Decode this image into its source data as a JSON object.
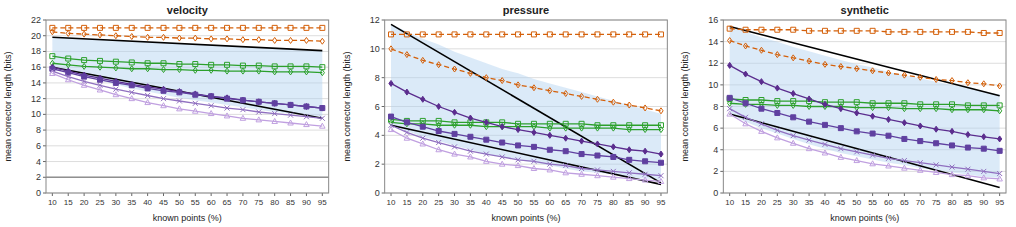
{
  "chart_data": [
    {
      "type": "line",
      "title": "velocity",
      "xlabel": "known points (%)",
      "ylabel": "mean corrector length (bits)",
      "x": [
        10,
        15,
        20,
        25,
        30,
        35,
        40,
        45,
        50,
        55,
        60,
        65,
        70,
        75,
        80,
        85,
        90,
        95
      ],
      "xlim": [
        8,
        97
      ],
      "xticks": [
        10,
        15,
        20,
        25,
        30,
        35,
        40,
        45,
        50,
        55,
        60,
        65,
        70,
        75,
        80,
        85,
        90,
        95
      ],
      "ylim": [
        0,
        22
      ],
      "yticks": [
        0,
        2,
        4,
        6,
        8,
        10,
        12,
        14,
        16,
        18,
        20,
        22
      ],
      "grid": "y",
      "hline": {
        "value": 2.0,
        "color": "#909090"
      },
      "band": {
        "upper": [
          19.8,
          19.7,
          19.6,
          19.5,
          19.4,
          19.3,
          19.2,
          19.1,
          19.0,
          18.9,
          18.8,
          18.7,
          18.6,
          18.5,
          18.4,
          18.3,
          18.2,
          18.1
        ],
        "lower": [
          16.0,
          15.4,
          14.8,
          14.3,
          13.8,
          13.3,
          12.9,
          12.5,
          12.1,
          11.8,
          11.5,
          11.2,
          10.9,
          10.6,
          10.3,
          10.1,
          9.9,
          9.7
        ],
        "color": "#b0d0f0"
      },
      "reference_lines": [
        {
          "start": [
            10,
            19.8
          ],
          "end": [
            95,
            18.1
          ],
          "color": "#000000"
        },
        {
          "start": [
            10,
            16.0
          ],
          "end": [
            95,
            9.5
          ],
          "color": "#000000"
        }
      ],
      "series": [
        {
          "values": [
            21.0,
            21.0,
            21.0,
            21.0,
            21.0,
            21.0,
            21.0,
            21.0,
            21.0,
            21.0,
            21.0,
            21.0,
            21.0,
            21.0,
            21.0,
            21.0,
            21.0,
            21.0
          ],
          "color": "#d4600a",
          "line_style": "dashed",
          "marker": "square-open"
        },
        {
          "values": [
            20.5,
            20.3,
            20.2,
            20.1,
            20.0,
            19.9,
            19.8,
            19.8,
            19.7,
            19.7,
            19.6,
            19.6,
            19.5,
            19.5,
            19.4,
            19.4,
            19.4,
            19.3
          ],
          "color": "#d4600a",
          "line_style": "dashed",
          "marker": "diamond-open"
        },
        {
          "values": [
            17.4,
            17.1,
            16.9,
            16.8,
            16.7,
            16.6,
            16.5,
            16.5,
            16.4,
            16.4,
            16.3,
            16.3,
            16.2,
            16.2,
            16.1,
            16.1,
            16.1,
            16.0
          ],
          "color": "#2ca02c",
          "line_style": "solid",
          "marker": "square-open"
        },
        {
          "values": [
            16.5,
            16.3,
            16.1,
            16.0,
            15.9,
            15.8,
            15.8,
            15.7,
            15.7,
            15.6,
            15.6,
            15.5,
            15.5,
            15.5,
            15.4,
            15.4,
            15.4,
            15.3
          ],
          "color": "#2ca02c",
          "line_style": "solid",
          "marker": "diamond-open"
        },
        {
          "values": [
            16.0,
            15.5,
            15.0,
            14.6,
            14.2,
            13.8,
            13.5,
            13.2,
            12.9,
            12.6,
            12.3,
            12.1,
            11.8,
            11.6,
            11.4,
            11.2,
            11.0,
            10.8
          ],
          "color": "#5b2d8e",
          "line_style": "solid",
          "marker": "diamond"
        },
        {
          "values": [
            15.8,
            15.3,
            14.8,
            14.4,
            14.0,
            13.7,
            13.3,
            13.0,
            12.8,
            12.5,
            12.3,
            12.0,
            11.8,
            11.6,
            11.4,
            11.2,
            11.0,
            10.8
          ],
          "color": "#6040a0",
          "line_style": "solid",
          "marker": "square"
        },
        {
          "values": [
            15.5,
            14.8,
            14.2,
            13.7,
            13.2,
            12.8,
            12.4,
            12.0,
            11.7,
            11.4,
            11.1,
            10.8,
            10.6,
            10.3,
            10.1,
            9.9,
            9.7,
            9.5
          ],
          "color": "#9070c0",
          "line_style": "solid",
          "marker": "x"
        },
        {
          "values": [
            15.2,
            14.4,
            13.7,
            13.1,
            12.5,
            12.0,
            11.5,
            11.1,
            10.7,
            10.4,
            10.1,
            9.8,
            9.5,
            9.3,
            9.1,
            8.9,
            8.7,
            8.5
          ],
          "color": "#c0a0e0",
          "line_style": "solid",
          "marker": "triangle-open"
        }
      ]
    },
    {
      "type": "line",
      "title": "pressure",
      "xlabel": "known points (%)",
      "ylabel": "mean corrector length (bits)",
      "x": [
        10,
        15,
        20,
        25,
        30,
        35,
        40,
        45,
        50,
        55,
        60,
        65,
        70,
        75,
        80,
        85,
        90,
        95
      ],
      "xlim": [
        8,
        97
      ],
      "xticks": [
        10,
        15,
        20,
        25,
        30,
        35,
        40,
        45,
        50,
        55,
        60,
        65,
        70,
        75,
        80,
        85,
        90,
        95
      ],
      "ylim": [
        0,
        12
      ],
      "yticks": [
        0,
        2,
        4,
        6,
        8,
        10,
        12
      ],
      "grid": "y",
      "band": {
        "upper": [
          11.7,
          11.2,
          10.7,
          10.3,
          9.8,
          9.4,
          9.0,
          8.6,
          8.3,
          7.9,
          7.6,
          7.3,
          7.0,
          6.7,
          6.4,
          6.1,
          5.8,
          5.5
        ],
        "lower": [
          4.7,
          4.3,
          3.9,
          3.6,
          3.3,
          3.0,
          2.7,
          2.5,
          2.3,
          2.1,
          1.9,
          1.7,
          1.5,
          1.4,
          1.3,
          1.1,
          1.0,
          0.9
        ],
        "color": "#b0d0f0"
      },
      "reference_lines": [
        {
          "start": [
            10,
            11.7
          ],
          "end": [
            95,
            0.7
          ],
          "color": "#000000"
        },
        {
          "start": [
            10,
            4.7
          ],
          "end": [
            95,
            0.6
          ],
          "color": "#000000"
        }
      ],
      "series": [
        {
          "values": [
            11.0,
            11.0,
            11.0,
            11.0,
            11.0,
            11.0,
            11.0,
            11.0,
            11.0,
            11.0,
            11.0,
            11.0,
            11.0,
            11.0,
            11.0,
            11.0,
            11.0,
            11.0
          ],
          "color": "#d4600a",
          "line_style": "dashed",
          "marker": "square-open"
        },
        {
          "values": [
            10.0,
            9.6,
            9.2,
            8.9,
            8.6,
            8.3,
            8.0,
            7.8,
            7.5,
            7.3,
            7.1,
            6.9,
            6.7,
            6.5,
            6.3,
            6.1,
            5.9,
            5.7
          ],
          "color": "#d4600a",
          "line_style": "dashed",
          "marker": "diamond-open"
        },
        {
          "values": [
            5.1,
            5.0,
            5.0,
            5.0,
            4.9,
            4.9,
            4.9,
            4.9,
            4.8,
            4.8,
            4.8,
            4.8,
            4.8,
            4.7,
            4.7,
            4.7,
            4.7,
            4.7
          ],
          "color": "#2ca02c",
          "line_style": "solid",
          "marker": "square-open"
        },
        {
          "values": [
            4.9,
            4.8,
            4.8,
            4.7,
            4.7,
            4.7,
            4.6,
            4.6,
            4.6,
            4.6,
            4.5,
            4.5,
            4.5,
            4.5,
            4.5,
            4.4,
            4.4,
            4.4
          ],
          "color": "#2ca02c",
          "line_style": "solid",
          "marker": "diamond-open"
        },
        {
          "values": [
            7.6,
            7.0,
            6.5,
            6.0,
            5.6,
            5.2,
            4.9,
            4.6,
            4.4,
            4.2,
            4.0,
            3.8,
            3.6,
            3.4,
            3.2,
            3.0,
            2.9,
            2.7
          ],
          "color": "#5b2d8e",
          "line_style": "solid",
          "marker": "diamond"
        },
        {
          "values": [
            5.3,
            4.9,
            4.6,
            4.3,
            4.1,
            3.9,
            3.7,
            3.5,
            3.3,
            3.2,
            3.0,
            2.9,
            2.7,
            2.6,
            2.5,
            2.3,
            2.2,
            2.1
          ],
          "color": "#6040a0",
          "line_style": "solid",
          "marker": "square"
        },
        {
          "values": [
            4.7,
            4.2,
            3.8,
            3.5,
            3.2,
            2.9,
            2.7,
            2.5,
            2.3,
            2.2,
            2.0,
            1.9,
            1.7,
            1.6,
            1.5,
            1.4,
            1.3,
            1.2
          ],
          "color": "#9070c0",
          "line_style": "solid",
          "marker": "x"
        },
        {
          "values": [
            4.4,
            3.8,
            3.4,
            3.0,
            2.7,
            2.5,
            2.2,
            2.0,
            1.9,
            1.7,
            1.6,
            1.4,
            1.3,
            1.2,
            1.1,
            1.0,
            0.9,
            0.8
          ],
          "color": "#c0a0e0",
          "line_style": "solid",
          "marker": "triangle-open"
        }
      ]
    },
    {
      "type": "line",
      "title": "synthetic",
      "xlabel": "known points (%)",
      "ylabel": "mean corrector length (bits)",
      "x": [
        10,
        15,
        20,
        25,
        30,
        35,
        40,
        45,
        50,
        55,
        60,
        65,
        70,
        75,
        80,
        85,
        90,
        95
      ],
      "xlim": [
        8,
        97
      ],
      "xticks": [
        10,
        15,
        20,
        25,
        30,
        35,
        40,
        45,
        50,
        55,
        60,
        65,
        70,
        75,
        80,
        85,
        90,
        95
      ],
      "ylim": [
        0,
        16
      ],
      "yticks": [
        0,
        2,
        4,
        6,
        8,
        10,
        12,
        14,
        16
      ],
      "grid": "y",
      "band": {
        "upper": [
          15.4,
          14.9,
          14.4,
          14.0,
          13.5,
          13.1,
          12.7,
          12.3,
          11.9,
          11.6,
          11.2,
          10.9,
          10.6,
          10.3,
          10.0,
          9.7,
          9.4,
          9.1
        ],
        "lower": [
          7.3,
          6.6,
          6.0,
          5.5,
          5.0,
          4.5,
          4.1,
          3.7,
          3.4,
          3.1,
          2.8,
          2.6,
          2.3,
          2.1,
          1.9,
          1.7,
          1.5,
          1.4
        ],
        "color": "#b0d0f0"
      },
      "reference_lines": [
        {
          "start": [
            10,
            15.4
          ],
          "end": [
            95,
            9.0
          ],
          "color": "#000000"
        },
        {
          "start": [
            10,
            7.3
          ],
          "end": [
            95,
            0.5
          ],
          "color": "#000000"
        }
      ],
      "series": [
        {
          "values": [
            15.2,
            15.1,
            15.1,
            15.1,
            15.1,
            15.0,
            15.0,
            15.0,
            15.0,
            15.0,
            14.9,
            14.9,
            14.9,
            14.9,
            14.9,
            14.9,
            14.8,
            14.8
          ],
          "color": "#d4600a",
          "line_style": "dashed",
          "marker": "square-open"
        },
        {
          "values": [
            14.1,
            13.6,
            13.2,
            12.8,
            12.5,
            12.2,
            11.9,
            11.7,
            11.5,
            11.3,
            11.1,
            10.9,
            10.7,
            10.5,
            10.4,
            10.2,
            10.1,
            9.9
          ],
          "color": "#d4600a",
          "line_style": "dashed",
          "marker": "diamond-open"
        },
        {
          "values": [
            8.7,
            8.6,
            8.6,
            8.5,
            8.5,
            8.5,
            8.4,
            8.4,
            8.4,
            8.3,
            8.3,
            8.3,
            8.2,
            8.2,
            8.2,
            8.1,
            8.1,
            8.1
          ],
          "color": "#2ca02c",
          "line_style": "solid",
          "marker": "square-open"
        },
        {
          "values": [
            8.3,
            8.2,
            8.2,
            8.1,
            8.1,
            8.0,
            8.0,
            8.0,
            7.9,
            7.9,
            7.9,
            7.8,
            7.8,
            7.8,
            7.7,
            7.7,
            7.7,
            7.6
          ],
          "color": "#2ca02c",
          "line_style": "solid",
          "marker": "diamond-open"
        },
        {
          "values": [
            11.8,
            11.0,
            10.3,
            9.7,
            9.2,
            8.7,
            8.2,
            7.8,
            7.4,
            7.1,
            6.8,
            6.5,
            6.2,
            5.9,
            5.7,
            5.4,
            5.2,
            5.0
          ],
          "color": "#5b2d8e",
          "line_style": "solid",
          "marker": "diamond"
        },
        {
          "values": [
            8.8,
            8.3,
            7.8,
            7.4,
            7.0,
            6.6,
            6.3,
            6.0,
            5.7,
            5.5,
            5.3,
            5.0,
            4.8,
            4.6,
            4.4,
            4.2,
            4.1,
            3.9
          ],
          "color": "#6040a0",
          "line_style": "solid",
          "marker": "square"
        },
        {
          "values": [
            7.8,
            7.0,
            6.4,
            5.8,
            5.3,
            4.9,
            4.5,
            4.1,
            3.8,
            3.5,
            3.2,
            3.0,
            2.8,
            2.6,
            2.4,
            2.2,
            2.0,
            1.8
          ],
          "color": "#9070c0",
          "line_style": "solid",
          "marker": "x"
        },
        {
          "values": [
            7.3,
            6.4,
            5.7,
            5.1,
            4.6,
            4.1,
            3.7,
            3.3,
            3.0,
            2.7,
            2.5,
            2.3,
            2.1,
            1.9,
            1.7,
            1.6,
            1.4,
            1.3
          ],
          "color": "#c0a0e0",
          "line_style": "solid",
          "marker": "triangle-open"
        }
      ]
    }
  ]
}
